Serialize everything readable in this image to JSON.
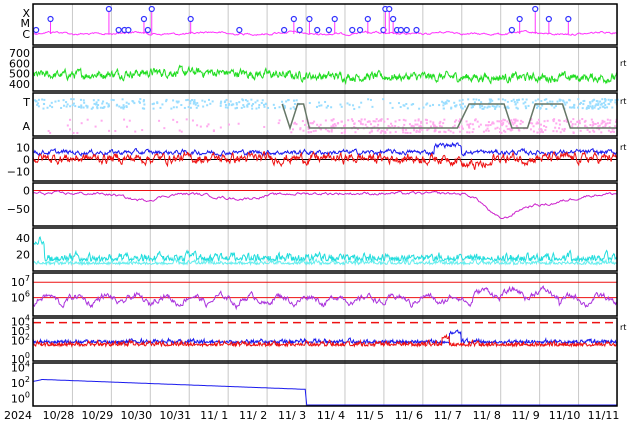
{
  "chart_data": {
    "type": "line",
    "year_label": "2024",
    "x_tick_labels": [
      "10/28",
      "10/29",
      "10/30",
      "10/31",
      "11/ 1",
      "11/ 2",
      "11/ 3",
      "11/ 4",
      "11/ 5",
      "11/ 6",
      "11/ 7",
      "11/ 8",
      "11/ 9",
      "11/10",
      "11/11"
    ],
    "right_marker": "rt",
    "colors": {
      "magenta": "#ff33ff",
      "purple": "#aa33dd",
      "green": "#22dd22",
      "lightblue": "#99ddff",
      "pink": "#ffaaee",
      "gray": "#667766",
      "blue": "#1a1aee",
      "red": "#ee1111",
      "cyan": "#22dddd",
      "frame": "#000000",
      "grid": "#c8c8c8"
    },
    "panels": [
      {
        "id": "event_markers",
        "y_tick_labels": [
          "X",
          "M",
          "C"
        ],
        "markers_x_days": [
          0.08,
          0.45,
          1.95,
          2.2,
          2.35,
          2.45,
          2.85,
          2.95,
          3.05,
          4.05,
          5.3,
          6.45,
          6.7,
          6.85,
          7.1,
          7.3,
          7.6,
          7.75,
          8.2,
          8.4,
          8.6,
          9.0,
          9.05,
          9.15,
          9.25,
          9.35,
          9.45,
          9.6,
          9.85,
          12.3,
          12.5,
          12.9,
          13.25,
          13.75
        ],
        "markers_level": [
          "C",
          "M",
          "X",
          "C",
          "C",
          "C",
          "M",
          "C",
          "X",
          "M",
          "C",
          "C",
          "M",
          "C",
          "M",
          "C",
          "C",
          "M",
          "C",
          "C",
          "M",
          "C",
          "X",
          "X",
          "M",
          "C",
          "C",
          "C",
          "C",
          "C",
          "M",
          "X",
          "M",
          "M"
        ]
      },
      {
        "id": "green_series",
        "y_tick_labels": [
          "700",
          "600",
          "500",
          "400"
        ],
        "y_ticks": [
          700,
          600,
          500,
          400
        ],
        "ylim": [
          330,
          760
        ],
        "right_marker": "rt"
      },
      {
        "id": "state_panel",
        "y_tick_labels": [
          "T",
          "A"
        ],
        "right_marker": "rt"
      },
      {
        "id": "blue_red_lines",
        "y_tick_labels": [
          "10",
          "0",
          "−10"
        ],
        "y_ticks": [
          10,
          0,
          -10
        ],
        "ylim": [
          -18,
          18
        ],
        "right_marker": "rt"
      },
      {
        "id": "magenta_index",
        "y_tick_labels": [
          "0",
          "−50"
        ],
        "y_ticks": [
          0,
          -50
        ],
        "ylim": [
          -95,
          20
        ]
      },
      {
        "id": "cyan_series",
        "y_tick_labels": [
          "40",
          "20"
        ],
        "y_ticks": [
          40,
          20
        ],
        "ylim": [
          0,
          52
        ]
      },
      {
        "id": "purple_flux",
        "y_tick_labels": [
          "10^7",
          "10^6"
        ],
        "ylim_log10": [
          4.8,
          7.6
        ]
      },
      {
        "id": "blue_red_flux",
        "y_tick_labels": [
          "10^4",
          "10^3",
          "10^2",
          "10^0"
        ],
        "ylim_log10": [
          -0.2,
          4.4
        ],
        "threshold_log10": 3.9,
        "right_marker": "rt"
      },
      {
        "id": "decay_series",
        "y_tick_labels": [
          "10^4",
          "10^2",
          "10^0"
        ],
        "ylim_log10": [
          -1.0,
          4.6
        ]
      }
    ]
  }
}
